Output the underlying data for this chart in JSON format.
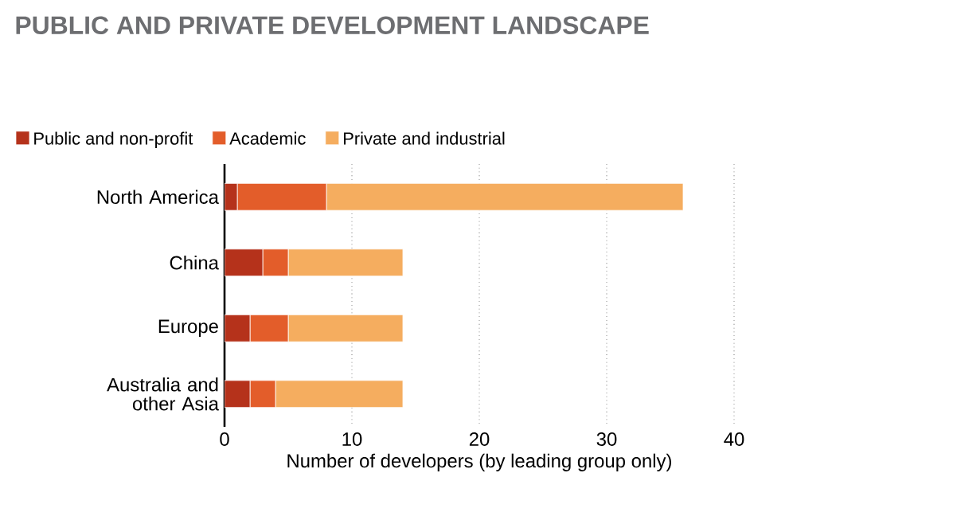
{
  "chart_data": {
    "type": "bar",
    "orientation": "horizontal",
    "stacked": true,
    "title": "PUBLIC AND PRIVATE DEVELOPMENT LANDSCAPE",
    "xlabel": "Number of developers (by leading group only)",
    "categories": [
      "North America",
      "China",
      "Europe",
      "Australia and other Asia"
    ],
    "series": [
      {
        "name": "Public and non-profit",
        "color": "#b5321b",
        "values": [
          1,
          3,
          2,
          2
        ]
      },
      {
        "name": "Academic",
        "color": "#e35d2a",
        "values": [
          7,
          2,
          3,
          2
        ]
      },
      {
        "name": "Private and industrial",
        "color": "#f5ad5f",
        "values": [
          28,
          9,
          9,
          10
        ]
      }
    ],
    "xlim": [
      0,
      40
    ],
    "xticks": [
      0,
      10,
      20,
      30,
      40
    ],
    "grid": "x",
    "legend": "top left"
  }
}
